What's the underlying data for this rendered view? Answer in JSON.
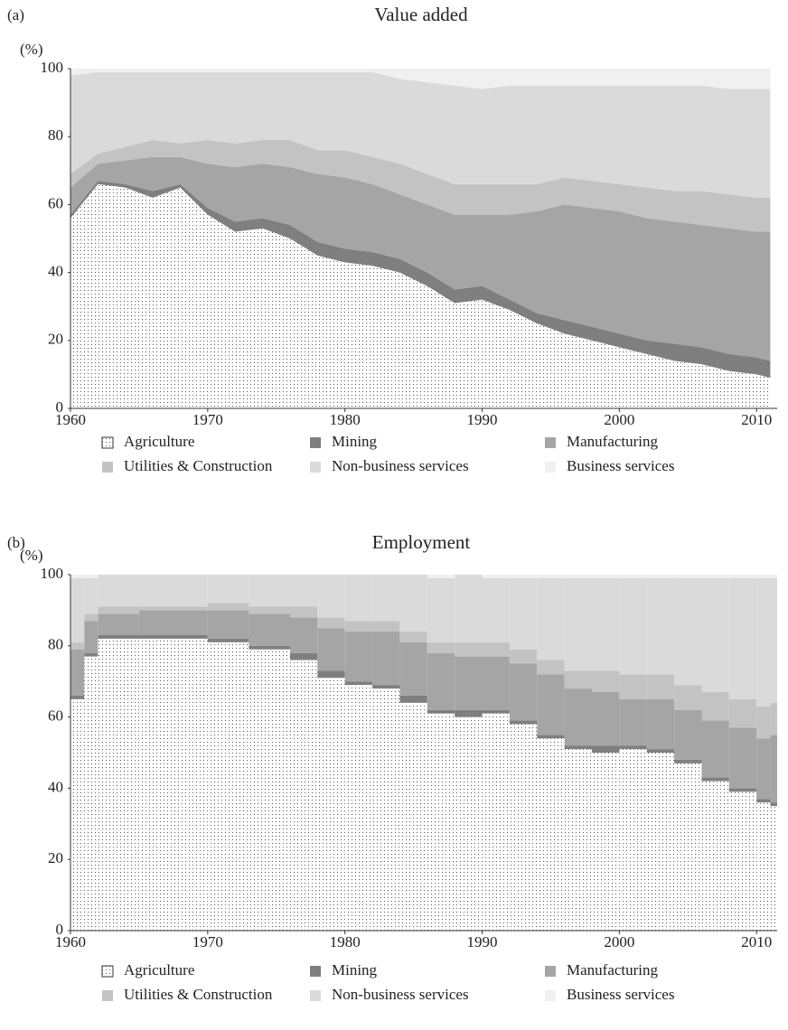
{
  "chart_data": [
    {
      "type": "area",
      "step": false,
      "panel_label": "(a)",
      "title": "Value added",
      "y_label": "(%)",
      "x": [
        1960,
        1962,
        1964,
        1966,
        1968,
        1970,
        1972,
        1974,
        1976,
        1978,
        1980,
        1982,
        1984,
        1986,
        1988,
        1990,
        1992,
        1994,
        1996,
        1998,
        2000,
        2002,
        2004,
        2006,
        2008,
        2010,
        2011
      ],
      "series": [
        {
          "name": "Agriculture",
          "color": "#ffffff",
          "pattern": "dots",
          "values": [
            56,
            66,
            65,
            62,
            65,
            57,
            52,
            53,
            50,
            45,
            43,
            42,
            40,
            36,
            31,
            32,
            29,
            25,
            22,
            20,
            18,
            16,
            14,
            13,
            11,
            10,
            9
          ]
        },
        {
          "name": "Mining",
          "color": "#7f7f7f",
          "values": [
            1,
            1,
            1,
            2,
            1,
            2,
            3,
            3,
            4,
            4,
            4,
            4,
            4,
            4,
            4,
            4,
            3,
            3,
            4,
            4,
            4,
            4,
            5,
            5,
            5,
            5,
            5
          ]
        },
        {
          "name": "Manufacturing",
          "color": "#a5a5a5",
          "values": [
            8,
            5,
            7,
            10,
            8,
            13,
            16,
            16,
            17,
            20,
            21,
            20,
            19,
            20,
            22,
            21,
            25,
            30,
            34,
            35,
            36,
            36,
            36,
            36,
            37,
            37,
            38
          ]
        },
        {
          "name": "Utilities & Construction",
          "color": "#c3c3c3",
          "values": [
            4,
            3,
            4,
            5,
            4,
            7,
            7,
            7,
            8,
            7,
            8,
            8,
            9,
            9,
            9,
            9,
            9,
            8,
            8,
            8,
            8,
            9,
            9,
            10,
            10,
            10,
            10
          ]
        },
        {
          "name": "Non-business services",
          "color": "#dadada",
          "values": [
            29,
            24,
            22,
            20,
            21,
            20,
            21,
            20,
            20,
            23,
            23,
            25,
            25,
            27,
            29,
            28,
            29,
            29,
            27,
            28,
            29,
            30,
            31,
            31,
            31,
            32,
            32
          ]
        },
        {
          "name": "Business services",
          "color": "#f0f0f0",
          "values": [
            2,
            1,
            1,
            1,
            1,
            1,
            1,
            1,
            1,
            1,
            1,
            1,
            3,
            4,
            5,
            6,
            5,
            5,
            5,
            5,
            5,
            5,
            5,
            5,
            6,
            6,
            6
          ]
        }
      ],
      "xlim": [
        1960,
        2011.5
      ],
      "ylim": [
        0,
        100
      ],
      "xticks": [
        1960,
        1970,
        1980,
        1990,
        2000,
        2010
      ],
      "yticks": [
        0,
        20,
        40,
        60,
        80,
        100
      ]
    },
    {
      "type": "area",
      "step": true,
      "panel_label": "(b)",
      "title": "Employment",
      "y_label": "(%)",
      "x": [
        1960,
        1961,
        1962,
        1965,
        1970,
        1973,
        1976,
        1978,
        1980,
        1982,
        1984,
        1986,
        1988,
        1990,
        1992,
        1994,
        1996,
        1998,
        2000,
        2002,
        2004,
        2006,
        2008,
        2010,
        2011
      ],
      "series": [
        {
          "name": "Agriculture",
          "color": "#ffffff",
          "pattern": "dots",
          "values": [
            65,
            77,
            82,
            82,
            81,
            79,
            76,
            71,
            69,
            68,
            64,
            61,
            60,
            61,
            58,
            54,
            51,
            50,
            51,
            50,
            47,
            42,
            39,
            36,
            35
          ]
        },
        {
          "name": "Mining",
          "color": "#7f7f7f",
          "values": [
            1,
            1,
            1,
            1,
            1,
            1,
            2,
            2,
            1,
            1,
            2,
            1,
            2,
            1,
            1,
            1,
            1,
            2,
            1,
            1,
            1,
            1,
            1,
            1,
            1
          ]
        },
        {
          "name": "Manufacturing",
          "color": "#a5a5a5",
          "values": [
            13,
            9,
            6,
            7,
            8,
            9,
            10,
            12,
            14,
            15,
            15,
            16,
            15,
            15,
            16,
            17,
            16,
            15,
            13,
            14,
            14,
            16,
            17,
            17,
            19
          ]
        },
        {
          "name": "Utilities & Construction",
          "color": "#c3c3c3",
          "values": [
            2,
            2,
            2,
            1,
            2,
            2,
            3,
            3,
            3,
            3,
            3,
            3,
            4,
            4,
            4,
            4,
            5,
            6,
            7,
            7,
            7,
            8,
            8,
            9,
            9
          ]
        },
        {
          "name": "Non-business services",
          "color": "#dadada",
          "values": [
            18,
            10,
            9,
            9,
            8,
            9,
            9,
            12,
            13,
            13,
            16,
            18,
            19,
            18,
            20,
            23,
            26,
            26,
            27,
            27,
            30,
            32,
            34,
            36,
            35
          ]
        },
        {
          "name": "Business services",
          "color": "#f0f0f0",
          "values": [
            1,
            1,
            0,
            0,
            0,
            0,
            0,
            0,
            0,
            0,
            0,
            1,
            0,
            1,
            1,
            1,
            1,
            1,
            1,
            1,
            1,
            1,
            1,
            1,
            1
          ]
        }
      ],
      "xlim": [
        1960,
        2011.5
      ],
      "ylim": [
        0,
        100
      ],
      "xticks": [
        1960,
        1970,
        1980,
        1990,
        2000,
        2010
      ],
      "yticks": [
        0,
        20,
        40,
        60,
        80,
        100
      ]
    }
  ]
}
